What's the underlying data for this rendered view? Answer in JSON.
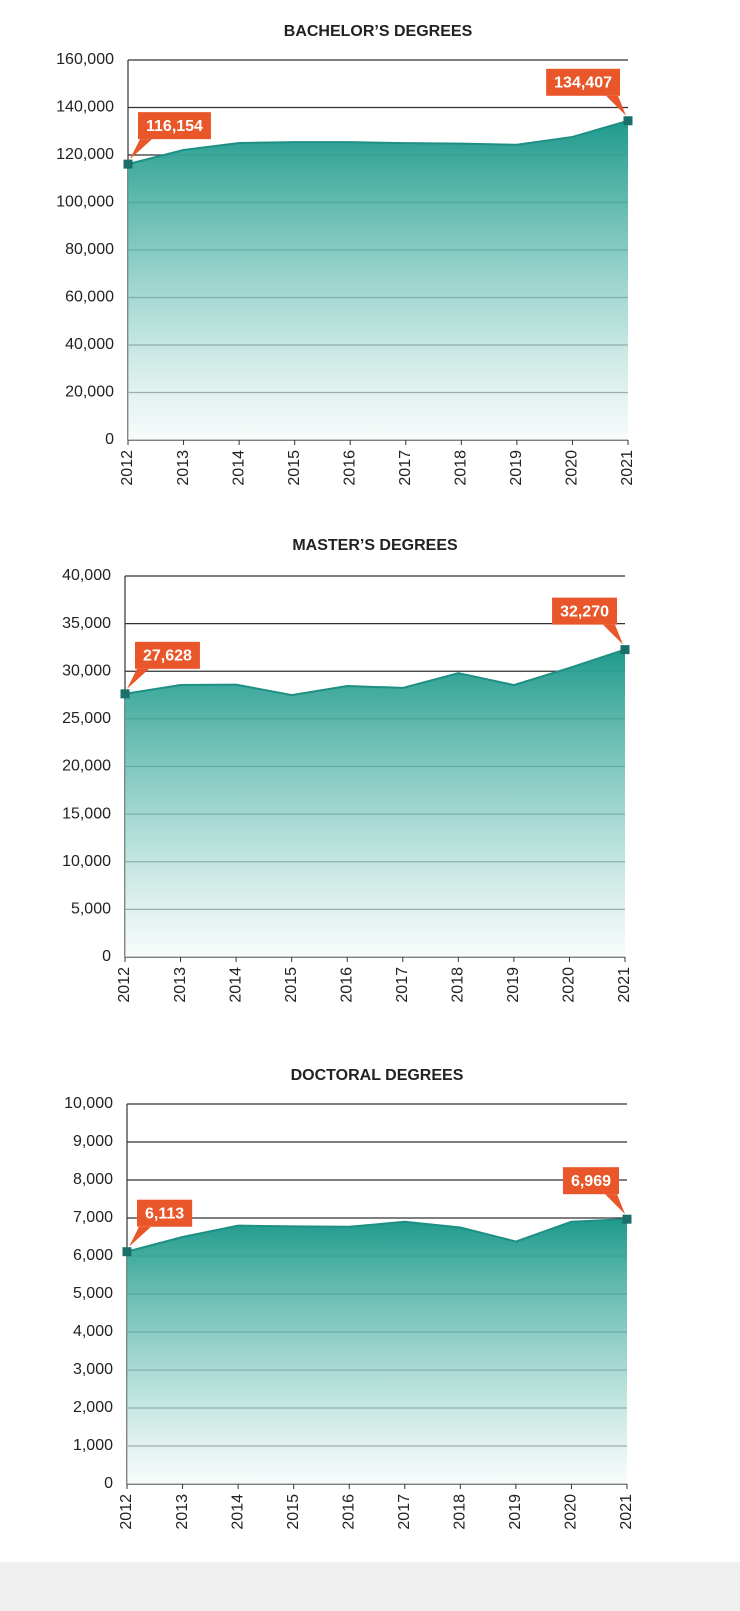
{
  "chart_data": [
    {
      "type": "area",
      "title": "BACHELOR’S DEGREES",
      "categories": [
        "2012",
        "2013",
        "2014",
        "2015",
        "2016",
        "2017",
        "2018",
        "2019",
        "2020",
        "2021"
      ],
      "values": [
        116154,
        122100,
        125050,
        125400,
        125400,
        125000,
        124800,
        124300,
        127600,
        134407
      ],
      "value_labels": [
        "116,154",
        null,
        null,
        null,
        null,
        null,
        null,
        null,
        null,
        "134,407"
      ],
      "color": "#1e8f84",
      "label_color": "#e8562a",
      "ylim": [
        0,
        160000
      ],
      "yticks": [
        0,
        {
          "value": 20000,
          "label": "20,000"
        },
        {
          "value": 40000,
          "label": "40,000"
        },
        {
          "value": 60000,
          "label": "60,000"
        },
        {
          "value": 80000,
          "label": "80,000"
        },
        {
          "value": 100000,
          "label": "100,000"
        },
        {
          "value": 120000,
          "label": "120,000"
        },
        {
          "value": 140000,
          "label": "140,000"
        },
        {
          "value": 160000,
          "label": "160,000"
        }
      ],
      "grid": true
    },
    {
      "type": "area",
      "title": "MASTER’S DEGREES",
      "categories": [
        "2012",
        "2013",
        "2014",
        "2015",
        "2016",
        "2017",
        "2018",
        "2019",
        "2020",
        "2021"
      ],
      "values": [
        27628,
        28550,
        28600,
        27500,
        28450,
        28250,
        29800,
        28550,
        30350,
        32270
      ],
      "value_labels": [
        "27,628",
        null,
        null,
        null,
        null,
        null,
        null,
        null,
        null,
        "32,270"
      ],
      "color": "#1e8f84",
      "label_color": "#e8562a",
      "ylim": [
        0,
        40000
      ],
      "yticks": [
        0,
        {
          "value": 5000,
          "label": "5,000"
        },
        {
          "value": 10000,
          "label": "10,000"
        },
        {
          "value": 15000,
          "label": "15,000"
        },
        {
          "value": 20000,
          "label": "20,000"
        },
        {
          "value": 25000,
          "label": "25,000"
        },
        {
          "value": 30000,
          "label": "30,000"
        },
        {
          "value": 35000,
          "label": "35,000"
        },
        {
          "value": 40000,
          "label": "40,000"
        }
      ],
      "grid": true
    },
    {
      "type": "area",
      "title": "DOCTORAL DEGREES",
      "categories": [
        "2012",
        "2013",
        "2014",
        "2015",
        "2016",
        "2017",
        "2018",
        "2019",
        "2020",
        "2021"
      ],
      "values": [
        6113,
        6500,
        6800,
        6780,
        6770,
        6900,
        6750,
        6380,
        6900,
        6969
      ],
      "value_labels": [
        "6,113",
        null,
        null,
        null,
        null,
        null,
        null,
        null,
        null,
        "6,969"
      ],
      "color": "#1e8f84",
      "label_color": "#e8562a",
      "ylim": [
        0,
        10000
      ],
      "yticks": [
        0,
        {
          "value": 1000,
          "label": "1,000"
        },
        {
          "value": 2000,
          "label": "2,000"
        },
        {
          "value": 3000,
          "label": "3,000"
        },
        {
          "value": 4000,
          "label": "4,000"
        },
        {
          "value": 5000,
          "label": "5,000"
        },
        {
          "value": 6000,
          "label": "6,000"
        },
        {
          "value": 7000,
          "label": "7,000"
        },
        {
          "value": 8000,
          "label": "8,000"
        },
        {
          "value": 9000,
          "label": "9,000"
        },
        {
          "value": 10000,
          "label": "10,000"
        }
      ],
      "grid": true
    }
  ]
}
